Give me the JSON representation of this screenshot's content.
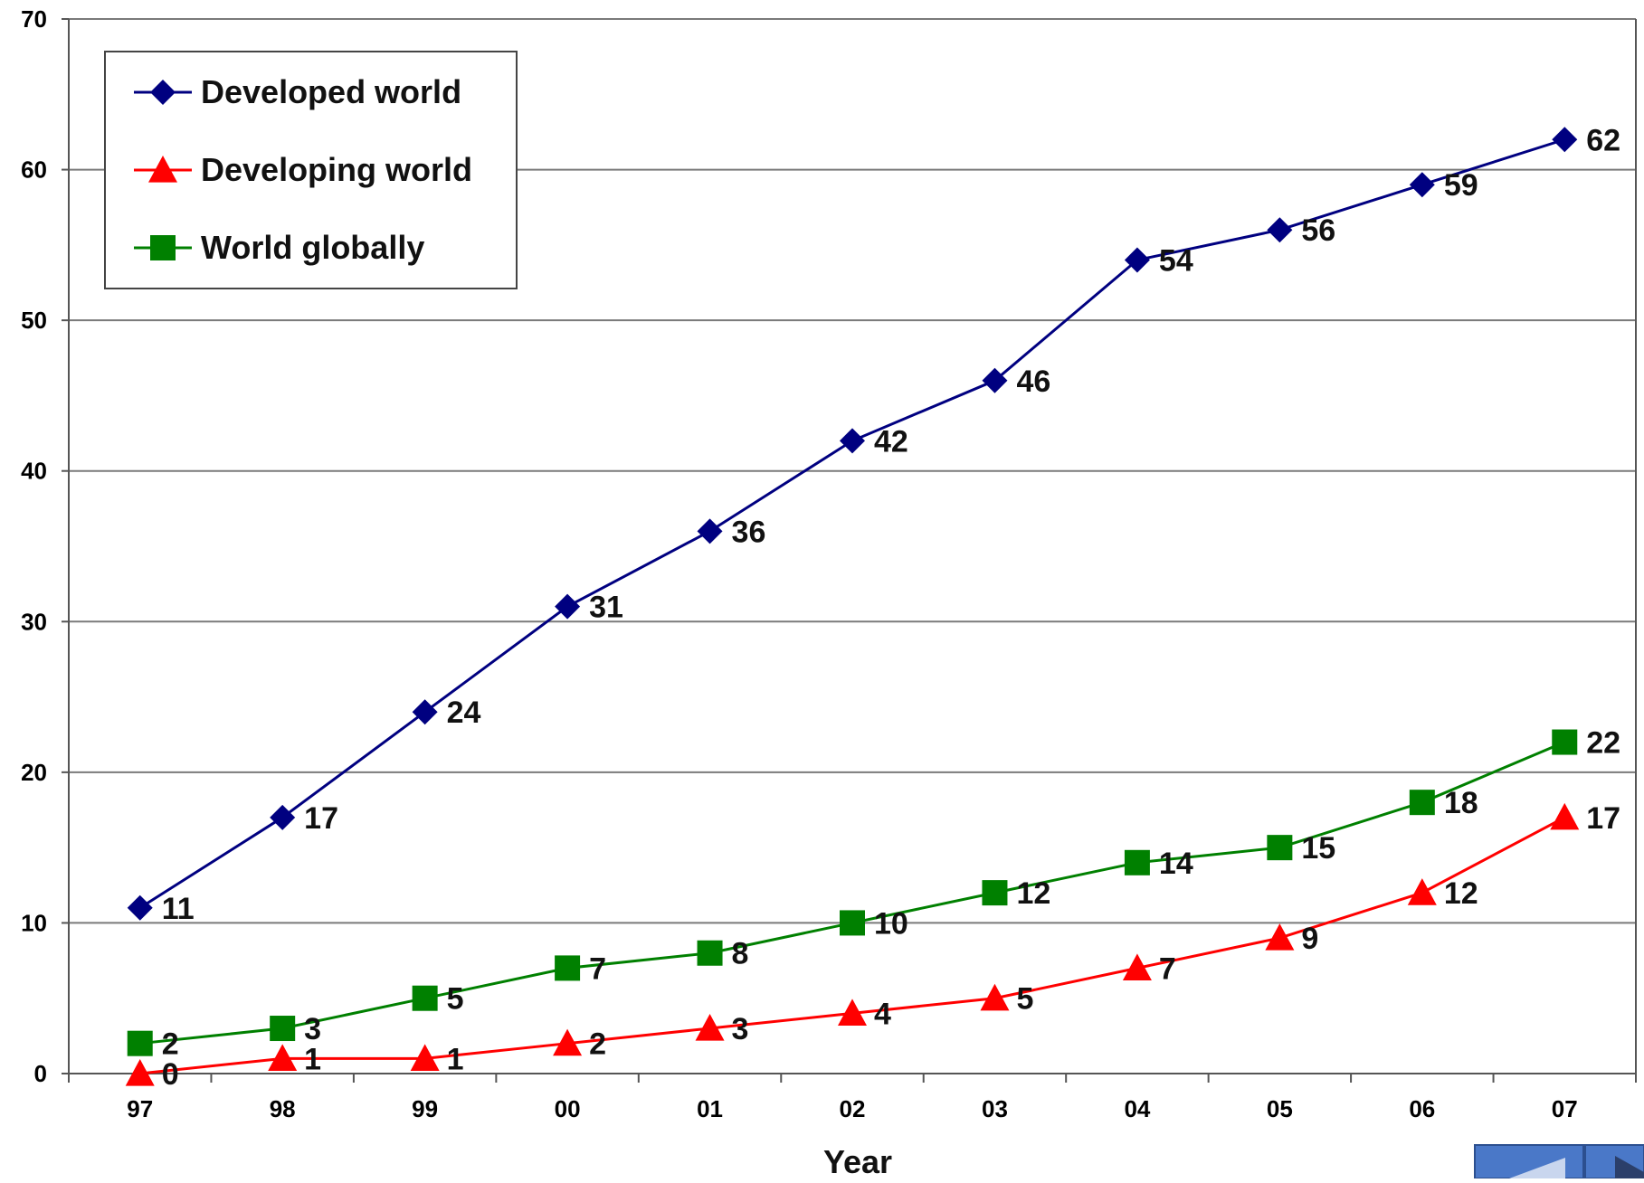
{
  "chart_data": {
    "type": "line",
    "title": "",
    "xlabel": "Year",
    "ylabel": "",
    "categories": [
      "97",
      "98",
      "99",
      "00",
      "01",
      "02",
      "03",
      "04",
      "05",
      "06",
      "07"
    ],
    "ylim": [
      0,
      70
    ],
    "yticks": [
      0,
      10,
      20,
      30,
      40,
      50,
      60,
      70
    ],
    "grid": "horizontal",
    "legend_position": "top-left",
    "series": [
      {
        "name": "Developed world",
        "color": "#000080",
        "marker": "diamond",
        "values": [
          11,
          17,
          24,
          31,
          36,
          42,
          46,
          54,
          56,
          59,
          62
        ]
      },
      {
        "name": "Developing world",
        "color": "#ff0000",
        "marker": "triangle",
        "values": [
          0,
          1,
          1,
          2,
          3,
          4,
          5,
          7,
          9,
          12,
          17
        ]
      },
      {
        "name": "World globally",
        "color": "#008000",
        "marker": "square",
        "values": [
          2,
          3,
          5,
          7,
          8,
          10,
          12,
          14,
          15,
          18,
          22
        ]
      }
    ]
  },
  "nav": {
    "back_icon": "triangle-left-icon",
    "forward_icon": "triangle-right-icon",
    "color": "#4a78c8"
  }
}
